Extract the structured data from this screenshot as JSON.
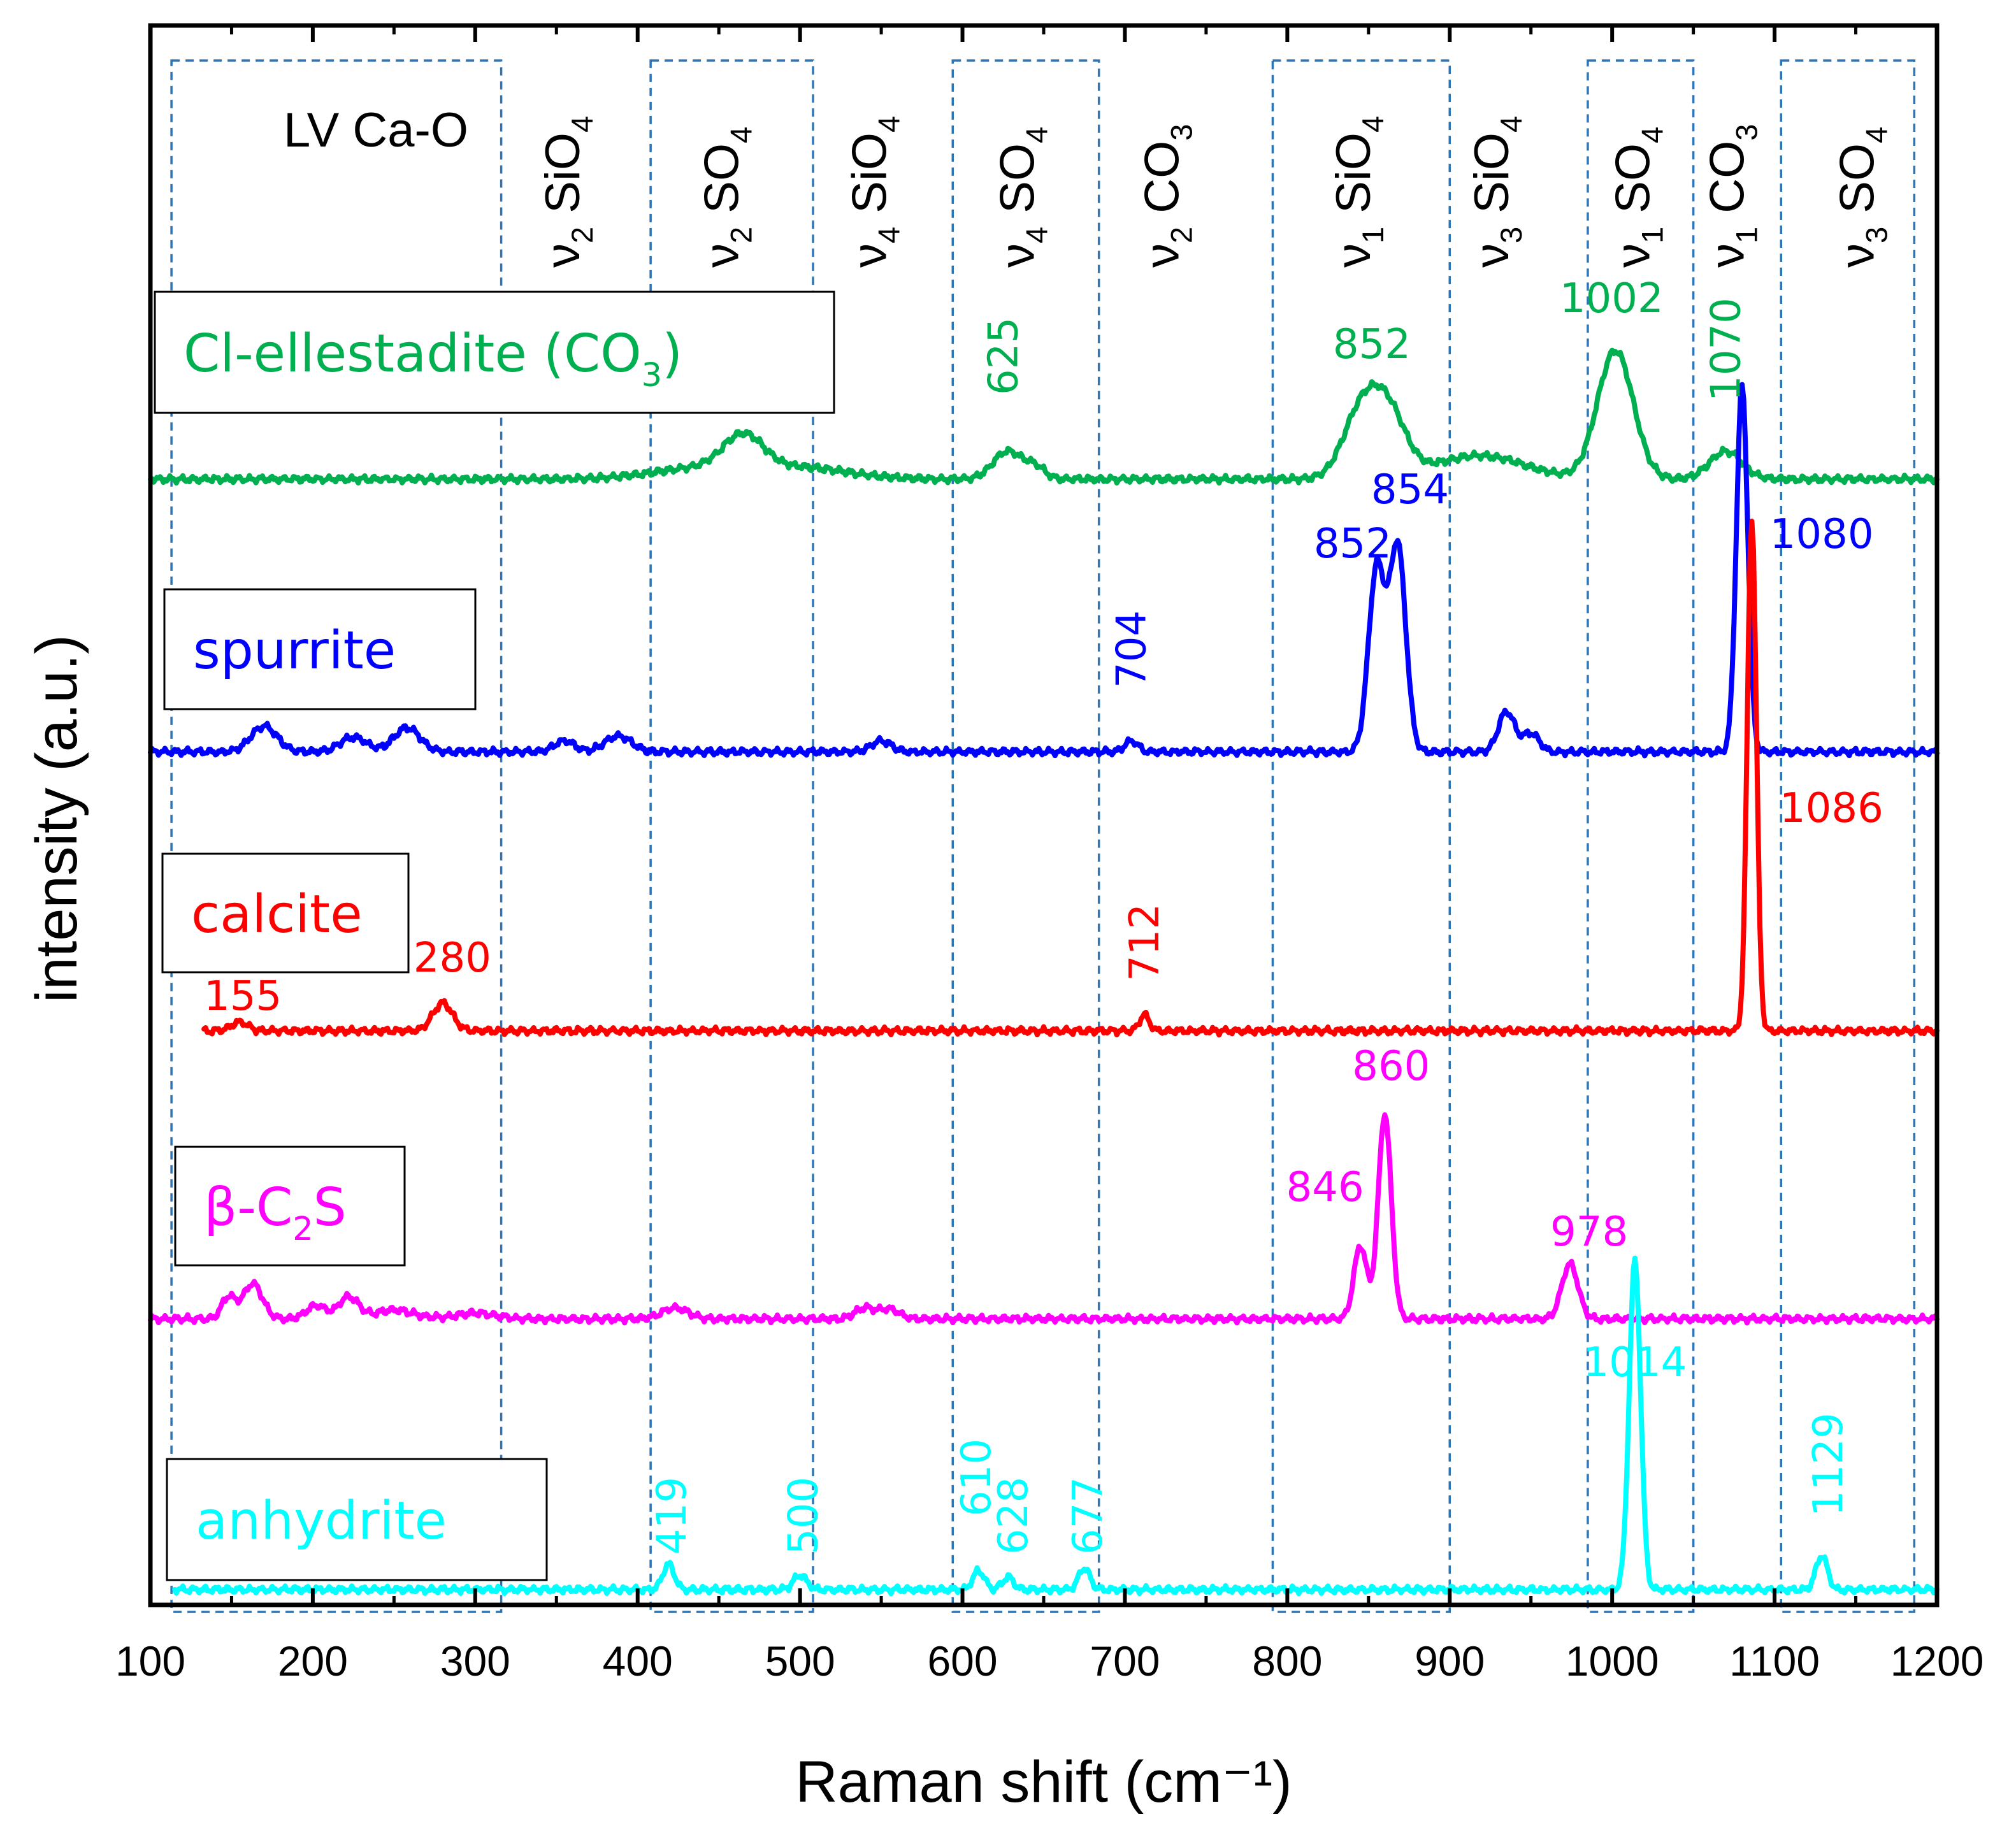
{
  "chart_data": {
    "type": "line",
    "xlabel": "Raman shift (cm⁻¹)",
    "ylabel": "intensity (a.u.)",
    "xlim": [
      100,
      1200
    ],
    "x_ticks": [
      "100",
      "200",
      "300",
      "400",
      "500",
      "600",
      "700",
      "800",
      "900",
      "1000",
      "1100",
      "1200"
    ],
    "grid": false,
    "regions": [
      {
        "x": [
          113,
          316
        ],
        "label": "LV Ca-O"
      },
      {
        "x": [
          408,
          508
        ],
        "label": "ν₂ SO₄"
      },
      {
        "x": [
          594,
          684
        ],
        "label": "ν₄ SO₄"
      },
      {
        "x": [
          791,
          900
        ],
        "label": "ν₁ SiO₄"
      },
      {
        "x": [
          985,
          1050
        ],
        "label": "ν₁ SO₄"
      },
      {
        "x": [
          1104,
          1186
        ],
        "label": "ν₃ SO₄"
      }
    ],
    "band_labels": [
      {
        "x": 360,
        "label": "ν₂ SiO₄"
      },
      {
        "x": 458,
        "label": "ν₂ SO₄"
      },
      {
        "x": 549,
        "label": "ν₄ SiO₄"
      },
      {
        "x": 640,
        "label": "ν₄ SO₄"
      },
      {
        "x": 729,
        "label": "ν₂ CO₃"
      },
      {
        "x": 847,
        "label": "ν₁ SiO₄"
      },
      {
        "x": 932,
        "label": "ν₃ SiO₄"
      },
      {
        "x": 1019,
        "label": "ν₁ SO₄"
      },
      {
        "x": 1077,
        "label": "ν₁ CO₃"
      },
      {
        "x": 1157,
        "label": "ν₃ SO₄"
      }
    ],
    "series": [
      {
        "name": "Cl-ellestadite (CO₃)",
        "color": "#00b050",
        "x_range": [
          100,
          1200
        ],
        "peaks": [
          {
            "x": 440,
            "h": 0.15,
            "w": 30
          },
          {
            "x": 465,
            "h": 0.45,
            "w": 12
          },
          {
            "x": 500,
            "h": 0.15,
            "w": 30
          },
          {
            "x": 628,
            "h": 0.38,
            "w": 9
          },
          {
            "x": 645,
            "h": 0.15,
            "w": 6
          },
          {
            "x": 845,
            "h": 0.85,
            "w": 11
          },
          {
            "x": 862,
            "h": 0.85,
            "w": 11
          },
          {
            "x": 918,
            "h": 0.32,
            "w": 28
          },
          {
            "x": 1002,
            "h": 1.75,
            "w": 11
          },
          {
            "x": 1070,
            "h": 0.38,
            "w": 10
          }
        ],
        "labels": [
          {
            "text": "625",
            "x": 625,
            "rot": true
          },
          {
            "text": "852",
            "x": 852,
            "rot": false
          },
          {
            "text": "1002",
            "x": 1002,
            "rot": false
          },
          {
            "text": "1070",
            "x": 1070,
            "rot": true
          }
        ]
      },
      {
        "name": "spurrite",
        "color": "#0000ff",
        "x_range": [
          100,
          1200
        ],
        "peaks": [
          {
            "x": 170,
            "h": 0.35,
            "w": 8
          },
          {
            "x": 225,
            "h": 0.2,
            "w": 8
          },
          {
            "x": 258,
            "h": 0.33,
            "w": 8
          },
          {
            "x": 355,
            "h": 0.15,
            "w": 6
          },
          {
            "x": 388,
            "h": 0.22,
            "w": 8
          },
          {
            "x": 550,
            "h": 0.15,
            "w": 6
          },
          {
            "x": 704,
            "h": 0.15,
            "w": 4
          },
          {
            "x": 855,
            "h": 2.5,
            "w": 5
          },
          {
            "x": 868,
            "h": 2.8,
            "w": 5
          },
          {
            "x": 935,
            "h": 0.55,
            "w": 5
          },
          {
            "x": 950,
            "h": 0.25,
            "w": 5
          },
          {
            "x": 1080,
            "h": 5.0,
            "w": 3.5
          }
        ],
        "labels": [
          {
            "text": "704",
            "x": 704,
            "rot": true
          },
          {
            "text": "852",
            "x": 852,
            "rot": false
          },
          {
            "text": "854",
            "x": 854,
            "rot": false
          },
          {
            "text": "1080",
            "x": 1080,
            "rot": false
          }
        ]
      },
      {
        "name": "calcite",
        "color": "#ff0000",
        "x_range": [
          133,
          1200
        ],
        "peaks": [
          {
            "x": 155,
            "h": 0.12,
            "w": 5
          },
          {
            "x": 280,
            "h": 0.38,
            "w": 6
          },
          {
            "x": 712,
            "h": 0.22,
            "w": 3
          },
          {
            "x": 1086,
            "h": 7.0,
            "w": 2.8
          }
        ],
        "labels": [
          {
            "text": "155",
            "x": 155,
            "rot": false
          },
          {
            "text": "280",
            "x": 280,
            "rot": false
          },
          {
            "text": "712",
            "x": 712,
            "rot": true
          },
          {
            "text": "1086",
            "x": 1086,
            "rot": false
          }
        ]
      },
      {
        "name": "β-C₂S",
        "color": "#ff00ff",
        "x_range": [
          100,
          1200
        ],
        "peaks": [
          {
            "x": 148,
            "h": 0.3,
            "w": 4
          },
          {
            "x": 163,
            "h": 0.48,
            "w": 6
          },
          {
            "x": 202,
            "h": 0.18,
            "w": 6
          },
          {
            "x": 222,
            "h": 0.3,
            "w": 6
          },
          {
            "x": 250,
            "h": 0.12,
            "w": 12
          },
          {
            "x": 300,
            "h": 0.08,
            "w": 12
          },
          {
            "x": 423,
            "h": 0.15,
            "w": 8
          },
          {
            "x": 540,
            "h": 0.15,
            "w": 6
          },
          {
            "x": 555,
            "h": 0.13,
            "w": 6
          },
          {
            "x": 845,
            "h": 1.0,
            "w": 4
          },
          {
            "x": 860,
            "h": 2.8,
            "w": 4
          },
          {
            "x": 974,
            "h": 0.75,
            "w": 5
          }
        ],
        "labels": [
          {
            "text": "846",
            "x": 846,
            "rot": false
          },
          {
            "text": "860",
            "x": 860,
            "rot": false
          },
          {
            "text": "978",
            "x": 978,
            "rot": false
          }
        ]
      },
      {
        "name": "anhydrite",
        "color": "#00ffff",
        "x_range": [
          115,
          1200
        ],
        "peaks": [
          {
            "x": 419,
            "h": 0.35,
            "w": 3.5
          },
          {
            "x": 500,
            "h": 0.2,
            "w": 4
          },
          {
            "x": 610,
            "h": 0.26,
            "w": 3.5
          },
          {
            "x": 628,
            "h": 0.17,
            "w": 3.5
          },
          {
            "x": 675,
            "h": 0.29,
            "w": 3.5
          },
          {
            "x": 1014,
            "h": 4.5,
            "w": 3.5
          },
          {
            "x": 1129,
            "h": 0.47,
            "w": 3.5
          }
        ],
        "labels": [
          {
            "text": "419",
            "x": 419,
            "rot": true
          },
          {
            "text": "500",
            "x": 500,
            "rot": true
          },
          {
            "text": "610",
            "x": 610,
            "rot": true
          },
          {
            "text": "628",
            "x": 628,
            "rot": true
          },
          {
            "text": "677",
            "x": 677,
            "rot": true
          },
          {
            "text": "1014",
            "x": 1014,
            "rot": false
          },
          {
            "text": "1129",
            "x": 1129,
            "rot": true
          }
        ]
      }
    ]
  }
}
